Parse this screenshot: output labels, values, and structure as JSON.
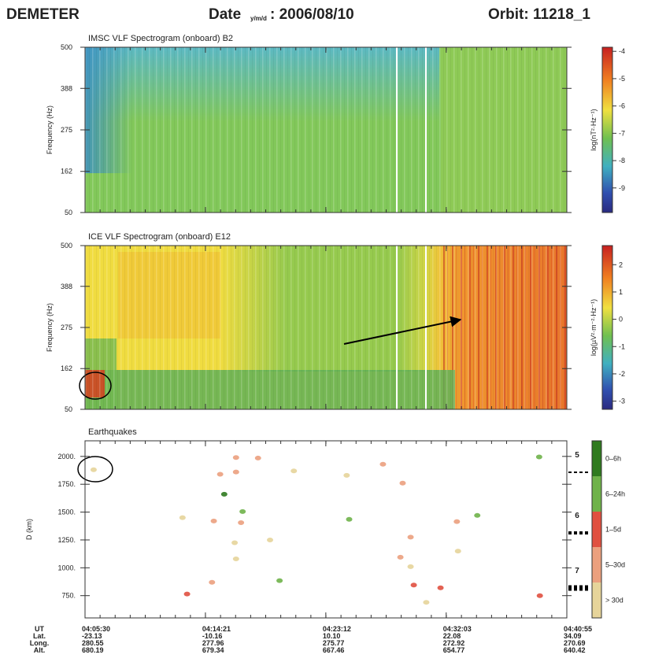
{
  "header": {
    "mission": "DEMETER",
    "date_label": "Date",
    "date_format": "y/m/d",
    "date": ": 2006/08/10",
    "orbit": "Orbit: 11218_1"
  },
  "chart_data": [
    {
      "type": "heatmap",
      "title": "IMSC VLF Spectrogram (onboard) B2",
      "ylabel": "Frequency (Hz)",
      "ylim": [
        50,
        500
      ],
      "yticks": [
        50,
        162,
        275,
        388,
        500
      ],
      "colorbar": {
        "label": "log(nT²·Hz⁻¹)",
        "lim": [
          -9.9,
          -3.85
        ],
        "ticks": [
          -4,
          -5,
          -6,
          -7,
          -8,
          -9
        ]
      }
    },
    {
      "type": "heatmap",
      "title": "ICE VLF Spectrogram (onboard) E12",
      "ylabel": "Frequency (Hz)",
      "ylim": [
        50,
        500
      ],
      "yticks": [
        50,
        162,
        275,
        388,
        500
      ],
      "colorbar": {
        "label": "log(µV²·m⁻²·Hz⁻¹)",
        "lim": [
          -3.3,
          2.7
        ],
        "ticks": [
          2,
          1,
          0,
          -1,
          -2,
          -3
        ]
      }
    },
    {
      "type": "scatter",
      "title": "Earthquakes",
      "ylabel": "D (km)",
      "xlim": [
        "04:05:30",
        "04:40:55"
      ],
      "xticks": [
        "04:05:30",
        "04:14:21",
        "04:23:12",
        "04:32:03",
        "04:40:55"
      ],
      "ylim": [
        550,
        2140
      ],
      "yticks": [
        {
          "value": 750,
          "label": "750."
        },
        {
          "value": 1000,
          "label": "1000."
        },
        {
          "value": 1250,
          "label": "1250."
        },
        {
          "value": 1500,
          "label": "1500."
        },
        {
          "value": 1750,
          "label": "1750."
        },
        {
          "value": 2000,
          "label": "2000."
        }
      ],
      "magnitudes": [
        5,
        6,
        7
      ],
      "series": [
        {
          "name": "0–6h",
          "color": "#2f7a1f",
          "x": [
            "04:15:44"
          ],
          "values": [
            1660
          ]
        },
        {
          "name": "6–24h",
          "color": "#6fb24a",
          "x": [
            "04:17:05",
            "04:19:48",
            "04:24:55",
            "04:38:53",
            "04:34:20"
          ],
          "values": [
            1505,
            885,
            1435,
            1995,
            1470
          ]
        },
        {
          "name": "1–5d",
          "color": "#e05040",
          "x": [
            "04:29:40",
            "04:31:38",
            "04:38:56",
            "04:13:00"
          ],
          "values": [
            845,
            820,
            750,
            765
          ]
        },
        {
          "name": "5–30d",
          "color": "#eba07e",
          "x": [
            "04:16:36",
            "04:18:13",
            "04:15:26",
            "04:16:36",
            "04:16:58",
            "04:14:58",
            "04:27:24",
            "04:28:51",
            "04:29:26",
            "04:28:41",
            "04:32:50",
            "04:14:50"
          ],
          "values": [
            1990,
            1985,
            1840,
            1860,
            1405,
            1420,
            1930,
            1760,
            1275,
            1095,
            1415,
            870
          ]
        },
        {
          "name": "> 30d",
          "color": "#e6d49a",
          "x": [
            "04:06:08",
            "04:12:40",
            "04:16:30",
            "04:19:06",
            "04:16:36",
            "04:20:51",
            "04:24:44",
            "04:29:26",
            "04:30:35",
            "04:32:55"
          ],
          "values": [
            1880,
            1450,
            1225,
            1250,
            1080,
            1870,
            1830,
            1010,
            690,
            1150
          ]
        }
      ]
    }
  ],
  "footer": {
    "labels": [
      "UT",
      "Lat.",
      "Long.",
      "Alt."
    ],
    "lat": [
      "-23.13",
      "-10.16",
      "10.10",
      "22.08",
      "34.09"
    ],
    "long": [
      "280.55",
      "277.96",
      "275.77",
      "272.92",
      "270.69"
    ],
    "alt": [
      "680.19",
      "679.34",
      "667.46",
      "654.77",
      "640.42"
    ]
  }
}
